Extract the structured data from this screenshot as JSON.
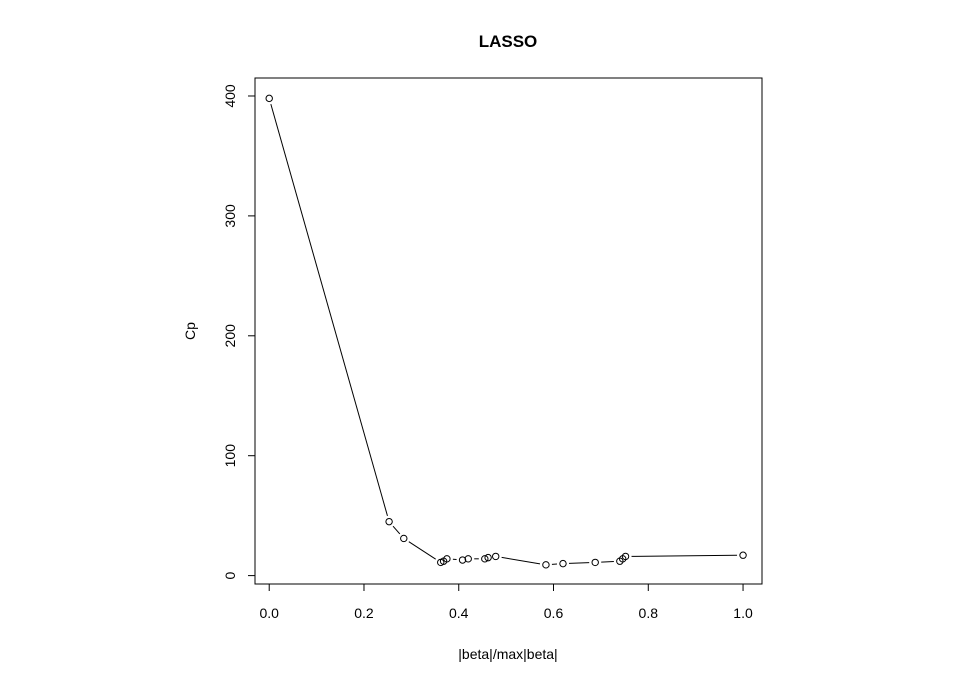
{
  "chart_data": {
    "type": "line",
    "title": "LASSO",
    "xlabel": "|beta|/max|beta|",
    "ylabel": "Cp",
    "xlim": [
      -0.03,
      1.04
    ],
    "ylim": [
      -7,
      415
    ],
    "xticks": [
      0.0,
      0.2,
      0.4,
      0.6,
      0.8,
      1.0
    ],
    "xtick_labels": [
      "0.0",
      "0.2",
      "0.4",
      "0.6",
      "0.8",
      "1.0"
    ],
    "yticks": [
      0,
      100,
      200,
      300,
      400
    ],
    "ytick_labels": [
      "0",
      "100",
      "200",
      "300",
      "400"
    ],
    "grid": false,
    "markers": "open-circle",
    "colors": {
      "line": "#000000",
      "marker": "#000000",
      "background": "#ffffff"
    },
    "points": [
      {
        "x": 0.0,
        "y": 398
      },
      {
        "x": 0.253,
        "y": 45
      },
      {
        "x": 0.284,
        "y": 31
      },
      {
        "x": 0.362,
        "y": 11
      },
      {
        "x": 0.368,
        "y": 12
      },
      {
        "x": 0.375,
        "y": 14
      },
      {
        "x": 0.408,
        "y": 13
      },
      {
        "x": 0.42,
        "y": 14
      },
      {
        "x": 0.455,
        "y": 14
      },
      {
        "x": 0.462,
        "y": 15
      },
      {
        "x": 0.478,
        "y": 16
      },
      {
        "x": 0.584,
        "y": 9
      },
      {
        "x": 0.62,
        "y": 10
      },
      {
        "x": 0.688,
        "y": 11
      },
      {
        "x": 0.74,
        "y": 12
      },
      {
        "x": 0.746,
        "y": 14
      },
      {
        "x": 0.752,
        "y": 16
      },
      {
        "x": 1.0,
        "y": 17
      }
    ]
  }
}
